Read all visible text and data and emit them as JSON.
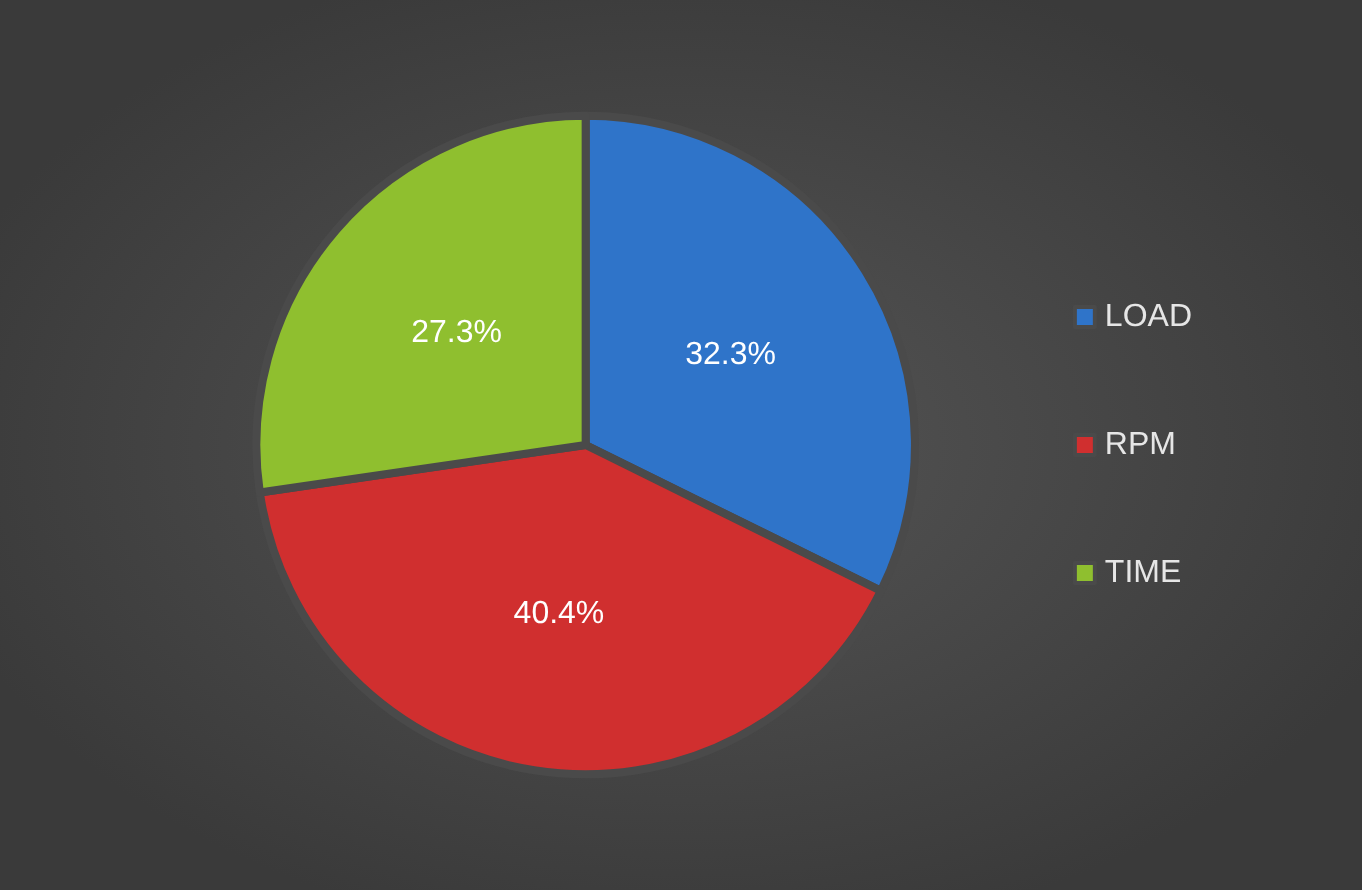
{
  "chart_data": {
    "type": "pie",
    "categories": [
      "LOAD",
      "RPM",
      "TIME"
    ],
    "values": [
      32.3,
      40.4,
      27.3
    ],
    "colors": [
      "#2f74c9",
      "#d02f2f",
      "#8fbf2f"
    ],
    "data_labels": true,
    "value_labels": [
      "32.3%",
      "40.4%",
      "27.3%"
    ],
    "legend": "right"
  }
}
